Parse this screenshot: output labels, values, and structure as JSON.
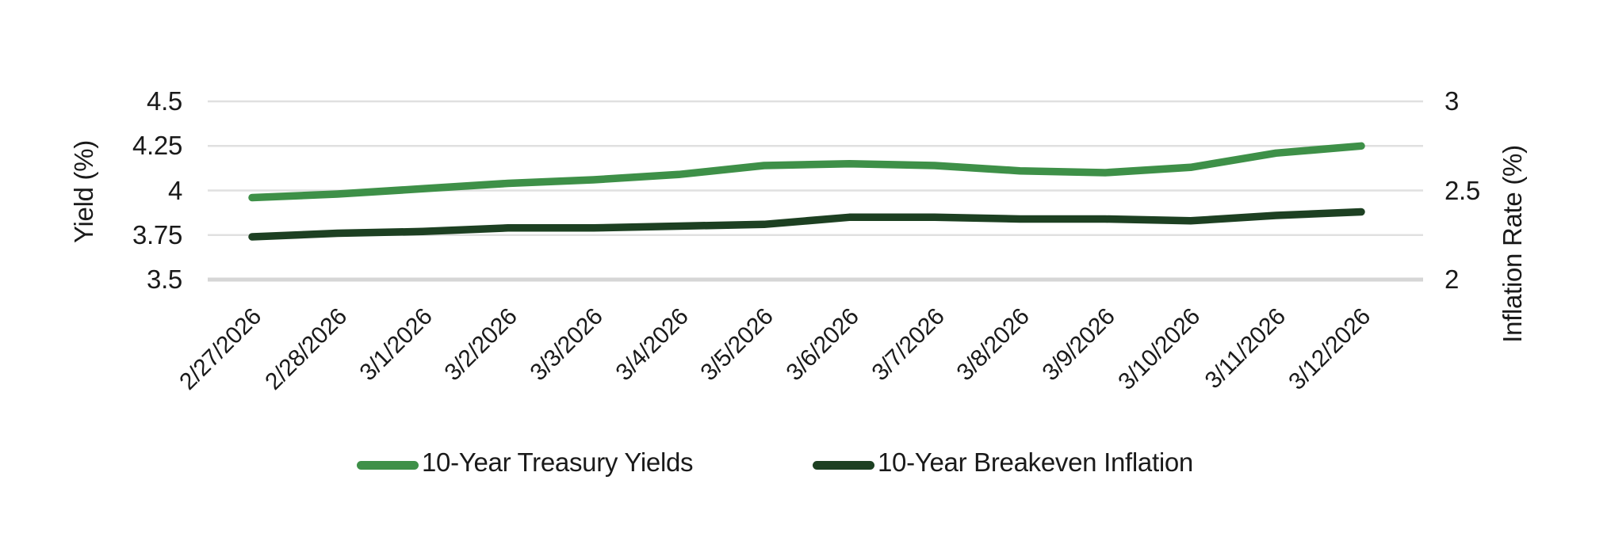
{
  "chart_data": {
    "type": "line",
    "title": "",
    "x": [
      "2/27/2026",
      "2/28/2026",
      "3/1/2026",
      "3/2/2026",
      "3/3/2026",
      "3/4/2026",
      "3/5/2026",
      "3/6/2026",
      "3/7/2026",
      "3/8/2026",
      "3/9/2026",
      "3/10/2026",
      "3/11/2026",
      "3/12/2026"
    ],
    "series": [
      {
        "name": "10-Year Treasury Yields",
        "axis": "left",
        "color": "#3e9048",
        "values": [
          3.96,
          3.98,
          4.01,
          4.04,
          4.06,
          4.09,
          4.14,
          4.15,
          4.14,
          4.11,
          4.1,
          4.13,
          4.21,
          4.25
        ]
      },
      {
        "name": "10-Year Breakeven Inflation",
        "axis": "right",
        "color": "#1d4022",
        "values": [
          2.24,
          2.26,
          2.27,
          2.29,
          2.29,
          2.3,
          2.31,
          2.35,
          2.35,
          2.34,
          2.34,
          2.33,
          2.36,
          2.38
        ]
      }
    ],
    "left_axis": {
      "label": "Yield (%)",
      "min": 3.5,
      "max": 4.5,
      "tick_labels_top_to_bottom": [
        "4.5",
        "4.25",
        "4",
        "3.75",
        "3.5"
      ]
    },
    "right_axis": {
      "label": "Inflation Rate (%)",
      "min": 2,
      "max": 3,
      "tick_labels_top_to_bottom": [
        "3",
        "2.5",
        "2"
      ]
    },
    "grid": "horizontal-on",
    "legend_position": "bottom",
    "colors": {
      "gridline": "#e0e0e0",
      "baseline": "#d6d6d6",
      "text": "#1a1a1a"
    }
  }
}
